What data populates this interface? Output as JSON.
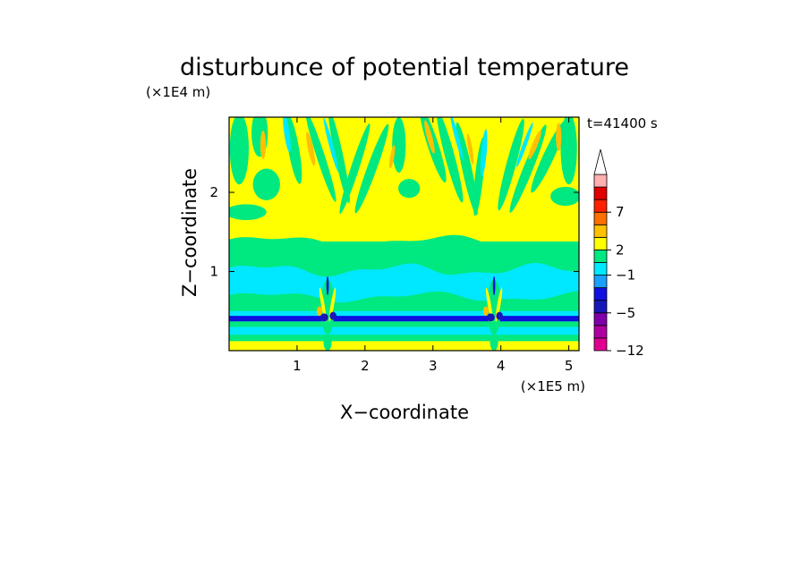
{
  "chart_data": {
    "type": "heatmap",
    "title": "disturbunce of potential temperature",
    "xlabel": "X−coordinate",
    "ylabel": "Z−coordinate",
    "x_unit": "(×1E5 m)",
    "y_unit": "(×1E4 m)",
    "time_label": "t=41400 s",
    "xlim": [
      0,
      5.15
    ],
    "ylim": [
      0,
      2.95
    ],
    "x_ticks": [
      1,
      2,
      3,
      4,
      5
    ],
    "x_tick_labels": [
      "1",
      "2",
      "3",
      "4",
      "5"
    ],
    "y_ticks": [
      1,
      2
    ],
    "y_tick_labels": [
      "1",
      "2"
    ],
    "colorbar": {
      "tick_labels": [
        "7",
        "2",
        "−1",
        "−5",
        "−12"
      ],
      "colors": [
        "#e00090",
        "#b000a0",
        "#8000a8",
        "#1818b8",
        "#1010e0",
        "#1aa0ff",
        "#00e8ff",
        "#00e880",
        "#ffff00",
        "#ffc000",
        "#ff7000",
        "#ff2000",
        "#e00000",
        "#ffb0b0",
        "#ffffff"
      ]
    },
    "bands": [
      {
        "z0": 0.0,
        "z1": 0.12,
        "color": "#ffff00"
      },
      {
        "z0": 0.12,
        "z1": 0.2,
        "color": "#00e880"
      },
      {
        "z0": 0.2,
        "z1": 0.3,
        "color": "#00e8ff"
      },
      {
        "z0": 0.3,
        "z1": 0.37,
        "color": "#00e880"
      },
      {
        "z0": 0.37,
        "z1": 0.44,
        "color": "#1010e0"
      },
      {
        "z0": 0.44,
        "z1": 0.5,
        "color": "#00e8ff"
      },
      {
        "z0": 0.5,
        "z1": 0.66,
        "color": "#00e880"
      },
      {
        "z0": 0.66,
        "z1": 1.02,
        "color": "#00e8ff"
      },
      {
        "z0": 1.02,
        "z1": 1.38,
        "color": "#00e880"
      },
      {
        "z0": 1.38,
        "z1": 2.95,
        "color": "#ffff00"
      }
    ],
    "mountains_x": [
      1.45,
      3.9
    ]
  }
}
